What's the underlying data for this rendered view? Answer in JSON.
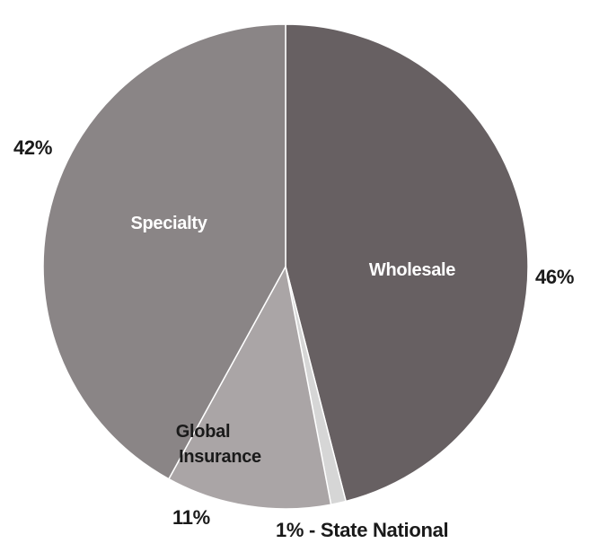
{
  "colors": {
    "wholesale": "#676062",
    "state_national": "#d6d6d6",
    "global_insurance": "#aaa5a6",
    "specialty": "#8a8586",
    "inside_text_light": "#ffffff",
    "inside_text_dark": "#1a1a1a",
    "outside_text": "#1a1a1a"
  },
  "chart_data": {
    "type": "pie",
    "start": "12 o'clock",
    "direction": "clockwise",
    "slices": [
      {
        "name": "Wholesale",
        "value": 46,
        "pct_label": "46%",
        "color_key": "wholesale"
      },
      {
        "name": "State National",
        "value": 1,
        "pct_label": "1% - State National",
        "color_key": "state_national"
      },
      {
        "name": "Global Insurance",
        "value": 11,
        "pct_label": "11%",
        "color_key": "global_insurance"
      },
      {
        "name": "Specialty",
        "value": 42,
        "pct_label": "42%",
        "color_key": "specialty"
      }
    ],
    "inside_labels": {
      "wholesale": "Wholesale",
      "specialty": "Specialty",
      "global_line1": "Global",
      "global_line2": "Insurance"
    }
  }
}
